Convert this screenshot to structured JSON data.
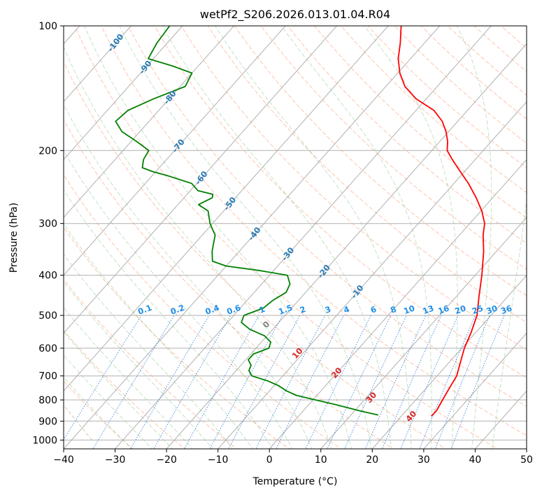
{
  "chart_data": {
    "type": "line",
    "title": "wetPf2_S206.2026.013.01.04.R04",
    "xlabel": "Temperature (°C)",
    "ylabel": "Pressure (hPa)",
    "xlim": [
      -40,
      50
    ],
    "ylim": [
      1050,
      100
    ],
    "y_scale": "log",
    "grid": true,
    "x_ticks": [
      "−40",
      "−30",
      "−20",
      "−10",
      "0",
      "10",
      "20",
      "30",
      "40",
      "50"
    ],
    "y_ticks": [
      "100",
      "200",
      "300",
      "400",
      "500",
      "600",
      "700",
      "800",
      "900",
      "1000"
    ],
    "x_tick_values": [
      -40,
      -30,
      -20,
      -10,
      0,
      10,
      20,
      30,
      40,
      50
    ],
    "y_tick_values": [
      100,
      200,
      300,
      400,
      500,
      600,
      700,
      800,
      900,
      1000
    ],
    "isotherm_labels": [
      "-100",
      "-90",
      "-80",
      "-70",
      "-60",
      "-50",
      "-40",
      "-30",
      "-20",
      "-10"
    ],
    "isotherm_values": [
      -100,
      -90,
      -80,
      -70,
      -60,
      -50,
      -40,
      -30,
      -20,
      -10
    ],
    "mixing_ratio_labels": [
      "0.1",
      "0.2",
      "0.4",
      "0.6",
      "1",
      "1.5",
      "2",
      "3",
      "4",
      "6",
      "8",
      "10",
      "13",
      "16",
      "20",
      "25",
      "30",
      "36"
    ],
    "mixing_ratio_values": [
      0.1,
      0.2,
      0.4,
      0.6,
      1,
      1.5,
      2,
      3,
      4,
      6,
      8,
      10,
      13,
      16,
      20,
      25,
      30,
      36
    ],
    "moist_adiabat_labels": [
      "0",
      "10",
      "20",
      "30",
      "40"
    ],
    "moist_adiabat_values": [
      0,
      10,
      20,
      30,
      40
    ],
    "series": [
      {
        "color": "#ff0000",
        "p": [
          875,
          850,
          800,
          750,
          700,
          650,
          600,
          550,
          500,
          450,
          400,
          350,
          320,
          300,
          280,
          260,
          240,
          220,
          210,
          200,
          190,
          180,
          170,
          160,
          150,
          140,
          130,
          120,
          110,
          100
        ],
        "t": [
          25.8,
          25.9,
          25.2,
          24.5,
          23.8,
          22.2,
          20.5,
          19.1,
          17.3,
          14.4,
          11.3,
          7.5,
          4.6,
          2.9,
          0.2,
          -3.2,
          -7.2,
          -12.0,
          -14.5,
          -17.0,
          -18.5,
          -20.5,
          -23.0,
          -26.5,
          -32.0,
          -36.3,
          -39.6,
          -42.4,
          -44.7,
          -47.5
        ]
      },
      {
        "color": "#008000",
        "p": [
          870,
          850,
          820,
          800,
          780,
          760,
          740,
          720,
          700,
          680,
          660,
          640,
          620,
          600,
          580,
          560,
          540,
          520,
          500,
          480,
          460,
          440,
          420,
          400,
          390,
          380,
          370,
          350,
          320,
          300,
          280,
          270,
          260,
          255,
          250,
          240,
          230,
          225,
          220,
          210,
          200,
          190,
          180,
          170,
          160,
          150,
          140,
          130,
          125,
          120,
          110,
          100
        ],
        "t": [
          15.3,
          11.0,
          5.0,
          0.5,
          -4.0,
          -6.8,
          -9.0,
          -12.0,
          -16.0,
          -17.5,
          -18.0,
          -19.5,
          -19.5,
          -17.5,
          -18.2,
          -20.5,
          -24.5,
          -27.3,
          -28.0,
          -25.5,
          -25.0,
          -23.8,
          -24.5,
          -26.5,
          -32.5,
          -40.0,
          -43.5,
          -45.3,
          -47.5,
          -50.5,
          -53.0,
          -56.0,
          -54.5,
          -55.0,
          -58.5,
          -61.0,
          -67.0,
          -70.5,
          -73.3,
          -74.5,
          -75.0,
          -79.0,
          -83.5,
          -86.5,
          -86.0,
          -83.0,
          -79.0,
          -80.0,
          -85.0,
          -91.0,
          -92.0,
          -92.5
        ]
      }
    ]
  }
}
